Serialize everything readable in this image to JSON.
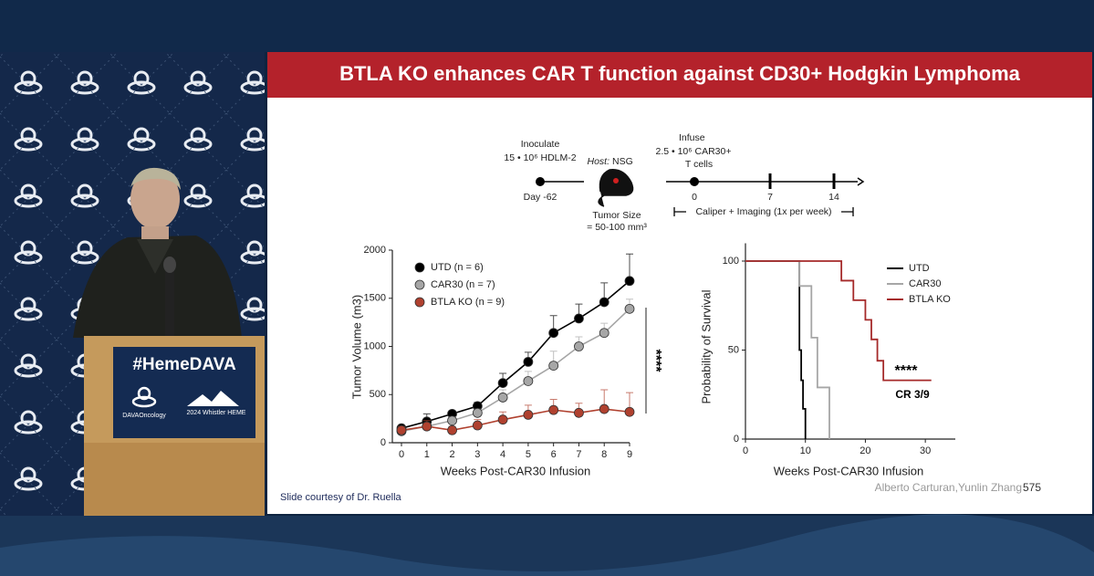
{
  "slide": {
    "title": "BTLA KO enhances CAR T function against CD30+ Hodgkin Lymphoma",
    "footer_left": "Slide courtesy of Dr. Ruella",
    "footer_right": "Alberto Carturan,Yunlin Zhang",
    "page_number": "575"
  },
  "podium": {
    "hashtag": "#HemeDAVA",
    "logo": "DAVAOncology",
    "event": "2024 Whistler HEME"
  },
  "timeline": {
    "inoculate": "Inoculate",
    "cells": "15 • 10⁶ HDLM-2",
    "day": "Day -62",
    "host_label": "Host:",
    "host": "NSG",
    "tumor_size": "Tumor Size",
    "tumor_range": "= 50-100 mm³",
    "infuse": "Infuse",
    "dose": "2.5 • 10⁶ CAR30+",
    "t_cells": "T cells",
    "days": [
      "0",
      "7",
      "14"
    ],
    "monitoring": "Caliper + Imaging (1x per week)"
  },
  "chart_data": [
    {
      "type": "line",
      "x_label": "Weeks Post-CAR30 Infusion",
      "y_label": "Tumor Volume (m3)",
      "x": [
        0,
        1,
        2,
        3,
        4,
        5,
        6,
        7,
        8,
        9
      ],
      "xlim": [
        0,
        9
      ],
      "xticks": [
        0,
        1,
        2,
        3,
        4,
        5,
        6,
        7,
        8,
        9
      ],
      "ylim": [
        0,
        2000
      ],
      "yticks": [
        0,
        500,
        1000,
        1500,
        2000
      ],
      "legend": "upper left",
      "annotation": "****",
      "series": [
        {
          "name": "UTD (n = 6)",
          "color": "#000000",
          "values": [
            150,
            220,
            300,
            380,
            620,
            840,
            1140,
            1290,
            1460,
            1680
          ],
          "errors": [
            30,
            80,
            30,
            40,
            100,
            100,
            180,
            150,
            200,
            280
          ]
        },
        {
          "name": "CAR30 (n = 7)",
          "color": "#a6a6a6",
          "values": [
            120,
            170,
            230,
            310,
            470,
            640,
            800,
            1000,
            1140,
            1390
          ],
          "errors": [
            20,
            30,
            40,
            40,
            80,
            100,
            150,
            100,
            100,
            100
          ]
        },
        {
          "name": "BTLA KO (n = 9)",
          "color": "#b0412f",
          "values": [
            130,
            170,
            130,
            180,
            240,
            290,
            340,
            310,
            350,
            320
          ],
          "errors": [
            40,
            60,
            40,
            60,
            80,
            100,
            110,
            100,
            200,
            200
          ]
        }
      ]
    },
    {
      "type": "line",
      "step": true,
      "x_label": "Weeks Post-CAR30 Infusion",
      "y_label": "Probability of Survival",
      "xlim": [
        0,
        35
      ],
      "xticks": [
        0,
        10,
        20,
        30
      ],
      "ylim": [
        0,
        110
      ],
      "yticks": [
        0,
        50,
        100
      ],
      "legend": "upper right",
      "annotations": [
        "****",
        "CR 3/9"
      ],
      "series": [
        {
          "name": "UTD",
          "color": "#000000",
          "x": [
            0,
            9,
            9.3,
            9.6,
            10
          ],
          "values": [
            100,
            50,
            33,
            17,
            0
          ]
        },
        {
          "name": "CAR30",
          "color": "#a6a6a6",
          "x": [
            0,
            9,
            11,
            12,
            14
          ],
          "values": [
            100,
            86,
            57,
            29,
            0
          ]
        },
        {
          "name": "BTLA KO",
          "color": "#a52a2a",
          "x": [
            0,
            16,
            18,
            20,
            21,
            22,
            23,
            31
          ],
          "values": [
            100,
            89,
            78,
            67,
            56,
            44,
            33,
            33
          ]
        }
      ]
    }
  ]
}
